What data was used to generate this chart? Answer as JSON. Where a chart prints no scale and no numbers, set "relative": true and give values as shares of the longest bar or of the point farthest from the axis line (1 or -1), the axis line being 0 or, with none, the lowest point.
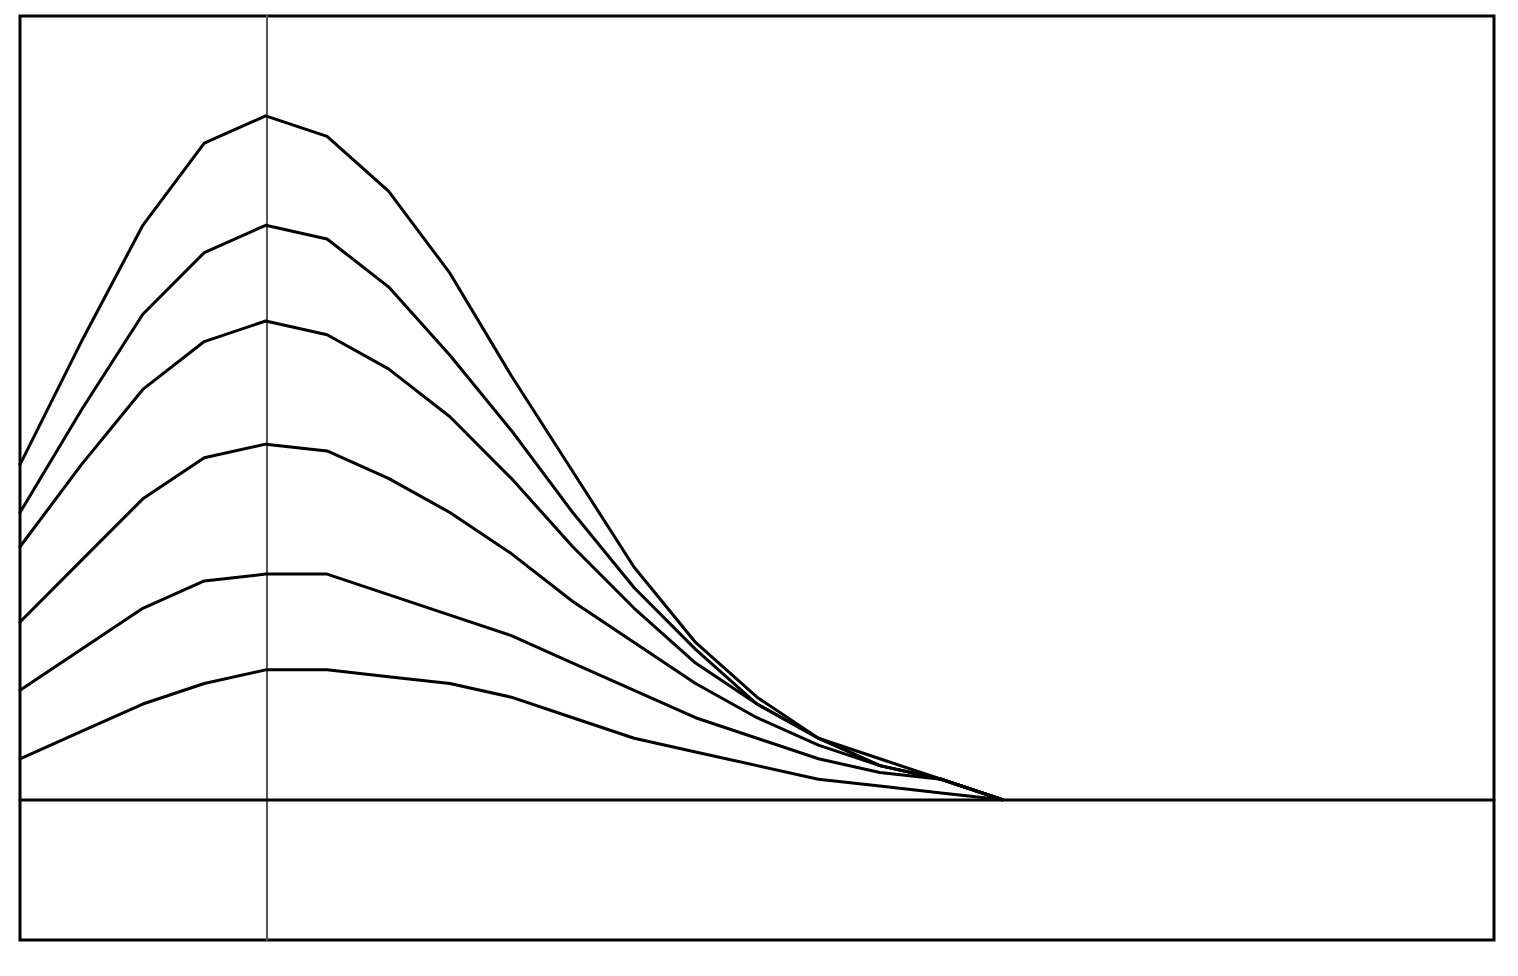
{
  "chart_data": {
    "type": "line",
    "relative": true,
    "categories": [
      null,
      null,
      null,
      null,
      null,
      null,
      null,
      null,
      null,
      null,
      null,
      null,
      null,
      null,
      null,
      null,
      null,
      null,
      null,
      null,
      null,
      null,
      null,
      null,
      null
    ],
    "grid": false,
    "marker": "none",
    "line_style": "solid",
    "series": [
      {
        "color": "#000000",
        "values": [
          0.49,
          0.67,
          0.84,
          0.96,
          1,
          0.97,
          0.89,
          0.77,
          0.62,
          0.48,
          0.34,
          0.23,
          0.15,
          0.09,
          0.05,
          0.03,
          0,
          null,
          null,
          null,
          null,
          null,
          null,
          null,
          null
        ]
      },
      {
        "color": "#000000",
        "values": [
          0.42,
          0.57,
          0.71,
          0.8,
          0.84,
          0.82,
          0.75,
          0.65,
          0.54,
          0.42,
          0.31,
          0.22,
          0.14,
          0.09,
          0.05,
          0.03,
          0,
          null,
          null,
          null,
          null,
          null,
          null,
          null,
          null
        ]
      },
      {
        "color": "#000000",
        "values": [
          0.37,
          0.49,
          0.6,
          0.67,
          0.7,
          0.68,
          0.63,
          0.56,
          0.47,
          0.37,
          0.28,
          0.2,
          0.14,
          0.09,
          0.06,
          0.03,
          0,
          null,
          null,
          null,
          null,
          null,
          null,
          null,
          null
        ]
      },
      {
        "color": "#000000",
        "values": [
          0.26,
          0.35,
          0.44,
          0.5,
          0.52,
          0.51,
          0.47,
          0.42,
          0.36,
          0.29,
          0.23,
          0.17,
          0.12,
          0.08,
          0.05,
          0.03,
          0,
          null,
          null,
          null,
          null,
          null,
          null,
          null,
          null
        ]
      },
      {
        "color": "#000000",
        "values": [
          0.16,
          0.22,
          0.28,
          0.32,
          0.33,
          0.33,
          0.3,
          0.27,
          0.24,
          0.2,
          0.16,
          0.12,
          0.09,
          0.06,
          0.04,
          0.03,
          0,
          null,
          null,
          null,
          null,
          null,
          null,
          null,
          null
        ]
      },
      {
        "color": "#000000",
        "values": [
          0.06,
          0.1,
          0.14,
          0.17,
          0.19,
          0.19,
          0.18,
          0.17,
          0.15,
          0.12,
          0.09,
          0.07,
          0.05,
          0.03,
          0.02,
          0.01,
          0,
          null,
          null,
          null,
          null,
          null,
          null,
          null,
          null
        ]
      }
    ]
  }
}
